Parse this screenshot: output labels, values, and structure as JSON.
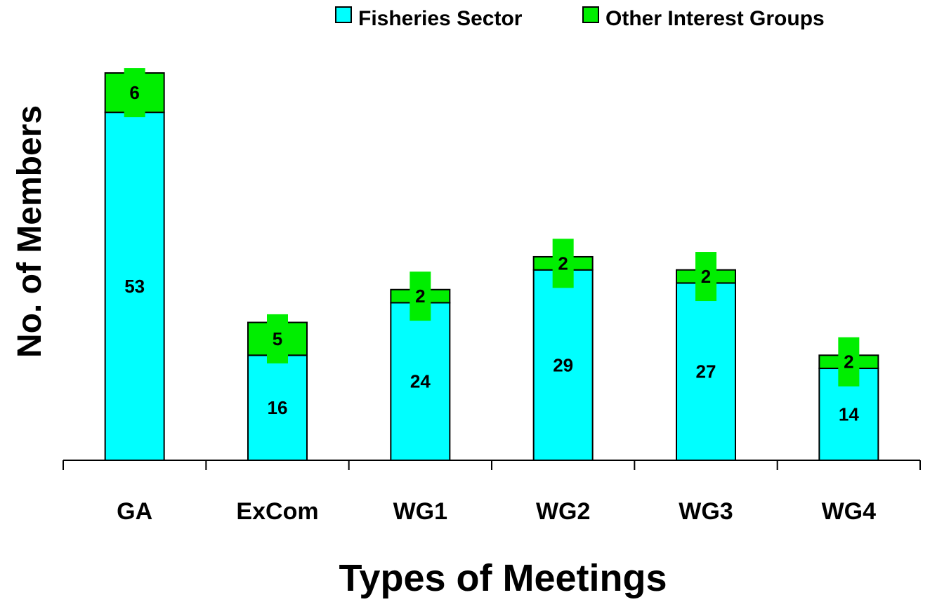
{
  "chart_data": {
    "type": "bar",
    "stacked": true,
    "title": "",
    "xlabel": "Types of Meetings",
    "ylabel": "No. of Members",
    "categories": [
      "GA",
      "ExCom",
      "WG1",
      "WG2",
      "WG3",
      "WG4"
    ],
    "series": [
      {
        "name": "Fisheries Sector",
        "values": [
          53,
          16,
          24,
          29,
          27,
          14
        ],
        "color": "#00FFFF"
      },
      {
        "name": "Other Interest Groups",
        "values": [
          6,
          5,
          2,
          2,
          2,
          2
        ],
        "color": "#00EE00"
      }
    ],
    "ylim": [
      0,
      59
    ],
    "legend_position": "top-right",
    "grid": false
  }
}
